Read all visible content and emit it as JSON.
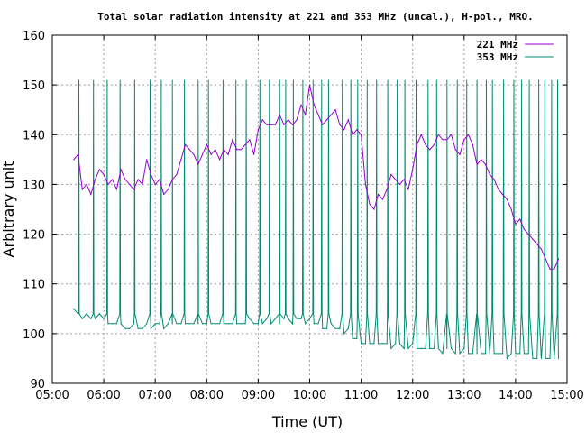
{
  "chart_data": {
    "type": "line",
    "title": "Total solar radiation intensity at 221 and 353 MHz (uncal.), H-pol., MRO.",
    "xlabel": "Time (UT)",
    "ylabel": "Arbitrary unit",
    "xlim": [
      "05:00",
      "15:00"
    ],
    "ylim": [
      90,
      160
    ],
    "x_ticks": [
      "05:00",
      "06:00",
      "07:00",
      "08:00",
      "09:00",
      "10:00",
      "11:00",
      "12:00",
      "13:00",
      "14:00",
      "15:00"
    ],
    "y_ticks": [
      90,
      100,
      110,
      120,
      130,
      140,
      150,
      160
    ],
    "grid": true,
    "legend_position": "top-right",
    "series": [
      {
        "name": "221 MHz",
        "color": "#9400d3",
        "x": [
          "05:25",
          "05:30",
          "05:35",
          "05:40",
          "05:45",
          "05:50",
          "05:55",
          "06:00",
          "06:05",
          "06:10",
          "06:15",
          "06:20",
          "06:25",
          "06:30",
          "06:35",
          "06:40",
          "06:45",
          "06:50",
          "06:55",
          "07:00",
          "07:05",
          "07:10",
          "07:15",
          "07:20",
          "07:25",
          "07:30",
          "07:35",
          "07:40",
          "07:45",
          "07:50",
          "07:55",
          "08:00",
          "08:05",
          "08:10",
          "08:15",
          "08:20",
          "08:25",
          "08:30",
          "08:35",
          "08:40",
          "08:45",
          "08:50",
          "08:55",
          "09:00",
          "09:05",
          "09:10",
          "09:15",
          "09:20",
          "09:25",
          "09:30",
          "09:35",
          "09:40",
          "09:45",
          "09:50",
          "09:55",
          "10:00",
          "10:05",
          "10:10",
          "10:15",
          "10:20",
          "10:25",
          "10:30",
          "10:35",
          "10:40",
          "10:45",
          "10:50",
          "10:55",
          "11:00",
          "11:05",
          "11:10",
          "11:15",
          "11:20",
          "11:25",
          "11:30",
          "11:35",
          "11:40",
          "11:45",
          "11:50",
          "11:55",
          "12:00",
          "12:05",
          "12:10",
          "12:15",
          "12:20",
          "12:25",
          "12:30",
          "12:35",
          "12:40",
          "12:45",
          "12:50",
          "12:55",
          "13:00",
          "13:05",
          "13:10",
          "13:15",
          "13:20",
          "13:25",
          "13:30",
          "13:35",
          "13:40",
          "13:45",
          "13:50",
          "13:55",
          "14:00",
          "14:05",
          "14:10",
          "14:15",
          "14:20",
          "14:25",
          "14:30",
          "14:35",
          "14:40",
          "14:45",
          "14:50"
        ],
        "values": [
          135,
          136,
          129,
          130,
          128,
          131,
          133,
          132,
          130,
          131,
          129,
          133,
          131,
          130,
          129,
          131,
          130,
          135,
          132,
          130,
          131,
          128,
          129,
          131,
          132,
          135,
          138,
          137,
          136,
          134,
          136,
          138,
          136,
          137,
          135,
          137,
          136,
          139,
          137,
          137,
          138,
          139,
          136,
          141,
          143,
          142,
          142,
          142,
          144,
          142,
          143,
          142,
          143,
          146,
          144,
          150,
          146,
          144,
          142,
          143,
          144,
          145,
          142,
          141,
          143,
          140,
          141,
          140,
          130,
          126,
          125,
          128,
          127,
          129,
          132,
          131,
          130,
          131,
          129,
          133,
          138,
          140,
          138,
          137,
          138,
          140,
          139,
          139,
          140,
          137,
          136,
          139,
          140,
          138,
          134,
          135,
          134,
          132,
          131,
          129,
          128,
          127,
          125,
          122,
          123,
          121,
          120,
          119,
          118,
          117,
          115,
          113,
          113,
          115
        ]
      },
      {
        "name": "353 MHz",
        "color": "#008b73",
        "x": [
          "05:25",
          "05:30",
          "05:35",
          "05:40",
          "05:45",
          "05:50",
          "05:55",
          "06:00",
          "06:05",
          "06:10",
          "06:15",
          "06:20",
          "06:25",
          "06:30",
          "06:35",
          "06:40",
          "06:45",
          "06:50",
          "06:55",
          "07:00",
          "07:05",
          "07:10",
          "07:15",
          "07:20",
          "07:25",
          "07:30",
          "07:35",
          "07:40",
          "07:45",
          "07:50",
          "07:55",
          "08:00",
          "08:05",
          "08:10",
          "08:15",
          "08:20",
          "08:25",
          "08:30",
          "08:35",
          "08:40",
          "08:45",
          "08:50",
          "08:55",
          "09:00",
          "09:05",
          "09:10",
          "09:15",
          "09:20",
          "09:25",
          "09:30",
          "09:35",
          "09:40",
          "09:45",
          "09:50",
          "09:55",
          "10:00",
          "10:05",
          "10:10",
          "10:15",
          "10:20",
          "10:25",
          "10:30",
          "10:35",
          "10:40",
          "10:45",
          "10:50",
          "10:55",
          "11:00",
          "11:05",
          "11:10",
          "11:15",
          "11:20",
          "11:25",
          "11:30",
          "11:35",
          "11:40",
          "11:45",
          "11:50",
          "11:55",
          "12:00",
          "12:05",
          "12:10",
          "12:15",
          "12:20",
          "12:25",
          "12:30",
          "12:35",
          "12:40",
          "12:45",
          "12:50",
          "12:55",
          "13:00",
          "13:05",
          "13:10",
          "13:15",
          "13:20",
          "13:25",
          "13:30",
          "13:35",
          "13:40",
          "13:45",
          "13:50",
          "13:55",
          "14:00",
          "14:05",
          "14:10",
          "14:15",
          "14:20",
          "14:25",
          "14:30",
          "14:35",
          "14:40",
          "14:45",
          "14:50"
        ],
        "values": [
          105,
          104,
          103,
          104,
          103,
          103,
          104,
          103,
          102,
          102,
          102,
          102,
          101,
          101,
          102,
          101,
          101,
          102,
          101,
          102,
          102,
          101,
          102,
          102,
          102,
          102,
          102,
          102,
          102,
          102,
          102,
          102,
          102,
          102,
          102,
          102,
          102,
          102,
          102,
          102,
          102,
          103,
          102,
          102,
          102,
          103,
          102,
          103,
          102,
          103,
          103,
          102,
          103,
          103,
          102,
          103,
          102,
          102,
          101,
          101,
          102,
          101,
          101,
          100,
          101,
          99,
          99,
          98,
          98,
          98,
          98,
          98,
          98,
          98,
          97,
          98,
          98,
          97,
          97,
          98,
          97,
          97,
          97,
          97,
          97,
          97,
          96,
          97,
          97,
          96,
          96,
          97,
          96,
          96,
          96,
          96,
          96,
          96,
          96,
          96,
          96,
          95,
          96,
          96,
          96,
          96,
          96,
          95,
          95,
          95,
          95,
          95,
          95,
          95
        ],
        "spike_times": [
          "05:31",
          "05:48",
          "06:04",
          "06:19",
          "06:36",
          "06:54",
          "07:07",
          "07:20",
          "07:34",
          "07:50",
          "08:02",
          "08:19",
          "08:34",
          "08:46",
          "09:02",
          "09:13",
          "09:25",
          "09:32",
          "09:41",
          "09:52",
          "10:04",
          "10:14",
          "10:22",
          "10:38",
          "10:48",
          "10:56",
          "11:07",
          "11:18",
          "11:31",
          "11:42",
          "11:51",
          "12:04",
          "12:18",
          "12:28",
          "12:40",
          "12:52",
          "13:03",
          "13:15",
          "13:26",
          "13:33",
          "13:46",
          "13:58",
          "14:07",
          "14:16",
          "14:27",
          "14:34",
          "14:42",
          "14:49"
        ],
        "spike_values": [
          151,
          151,
          151,
          151,
          151,
          151,
          151,
          151,
          151,
          151,
          151,
          151,
          151,
          151,
          151,
          151,
          151,
          151,
          151,
          151,
          151,
          151,
          151,
          151,
          151,
          151,
          151,
          151,
          151,
          151,
          151,
          151,
          151,
          151,
          151,
          151,
          151,
          151,
          151,
          151,
          151,
          151,
          151,
          151,
          151,
          151,
          151,
          151
        ]
      }
    ]
  }
}
